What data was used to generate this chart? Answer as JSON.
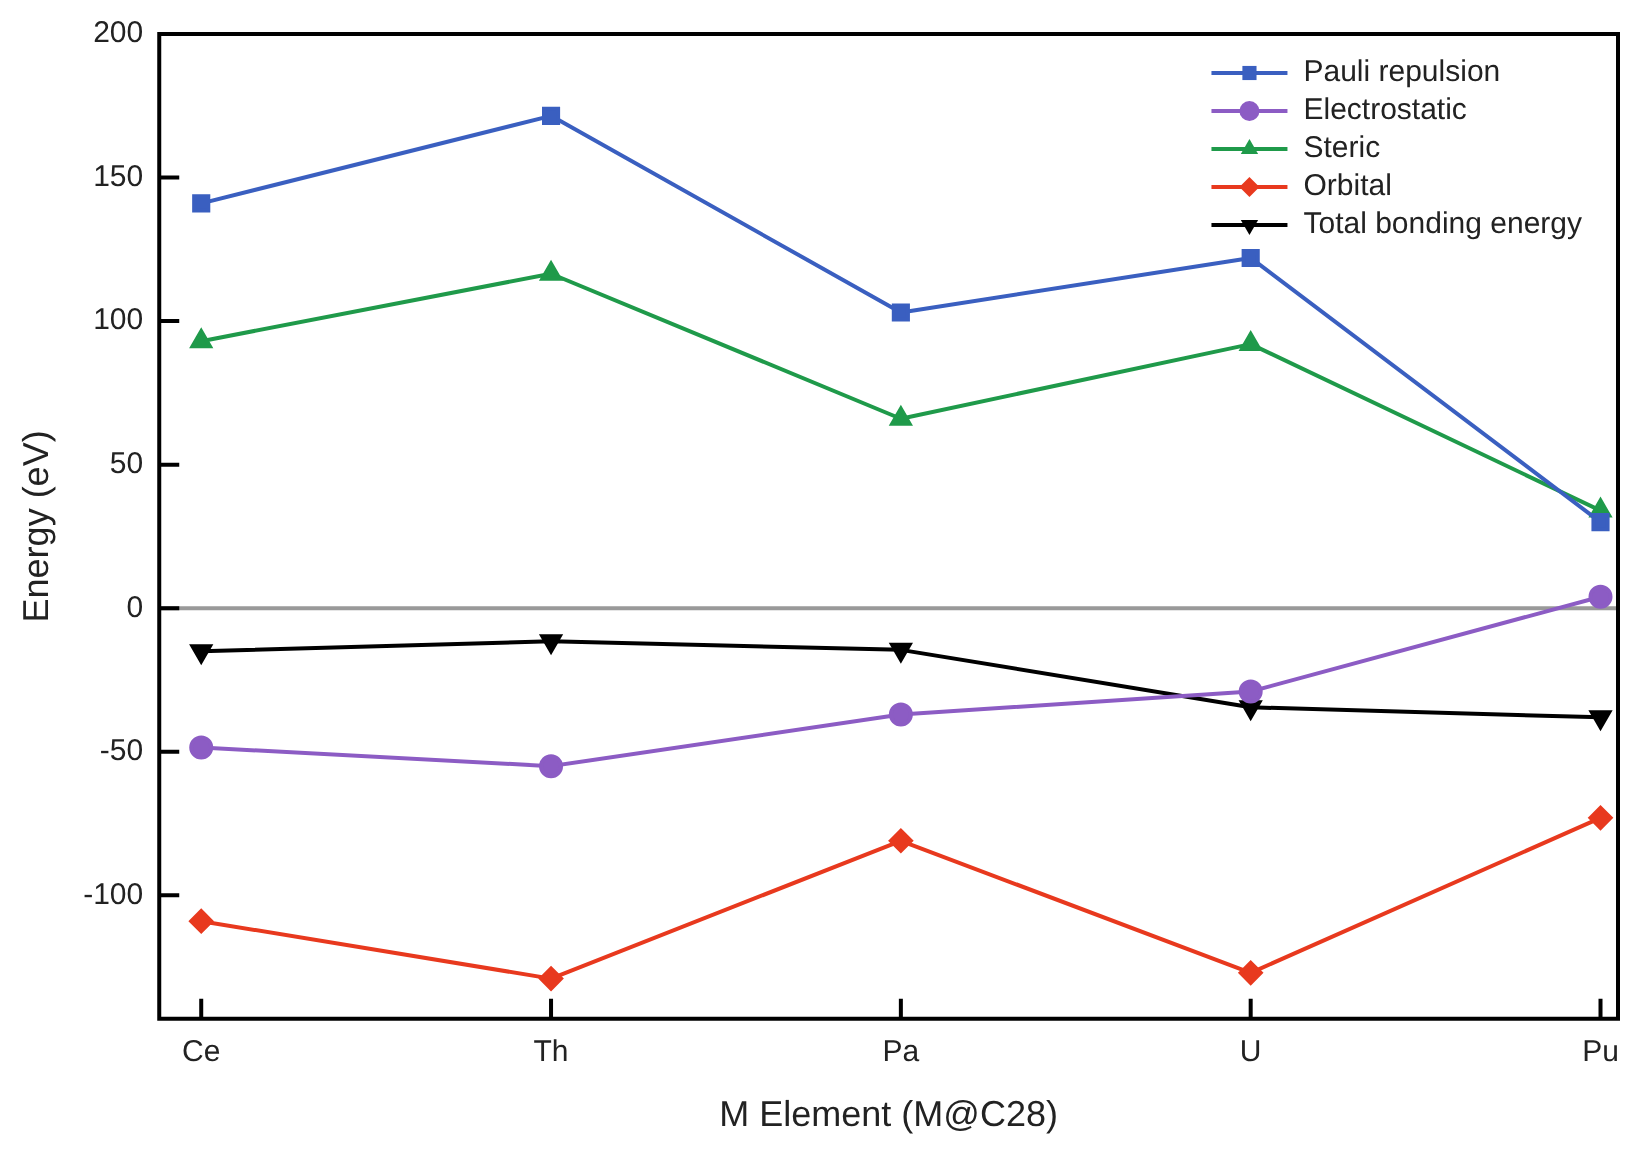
{
  "chart_data": {
    "type": "line",
    "xlabel": "M Element (M@C28)",
    "ylabel": "Energy (eV)",
    "categories": [
      "Ce",
      "Th",
      "Pa",
      "U",
      "Pu"
    ],
    "series": [
      {
        "name": "Pauli repulsion",
        "color": "#3a5fc0",
        "marker": "square",
        "values": [
          141,
          171.5,
          103,
          122,
          30
        ]
      },
      {
        "name": "Electrostatic",
        "color": "#8c5cc4",
        "marker": "circle",
        "values": [
          -48.5,
          -55,
          -37,
          -29,
          4
        ]
      },
      {
        "name": "Steric",
        "color": "#1f9a4a",
        "marker": "triangle",
        "values": [
          93,
          116.5,
          66,
          92,
          34
        ]
      },
      {
        "name": "Orbital",
        "color": "#e8391e",
        "marker": "diamond",
        "values": [
          -109,
          -129,
          -81,
          -127,
          -73
        ]
      },
      {
        "name": "Total bonding energy",
        "color": "#000000",
        "marker": "triangle-down",
        "values": [
          -15,
          -11.5,
          -14.5,
          -34.5,
          -38
        ]
      }
    ],
    "ylim": [
      -143,
      200
    ],
    "yticks": [
      -100,
      -50,
      0,
      50,
      100,
      150,
      200
    ],
    "ref_lines": [
      {
        "axis": "y",
        "value": 0,
        "color": "#999999"
      }
    ],
    "grid": false,
    "legend": "top right",
    "line_style": "solid"
  }
}
